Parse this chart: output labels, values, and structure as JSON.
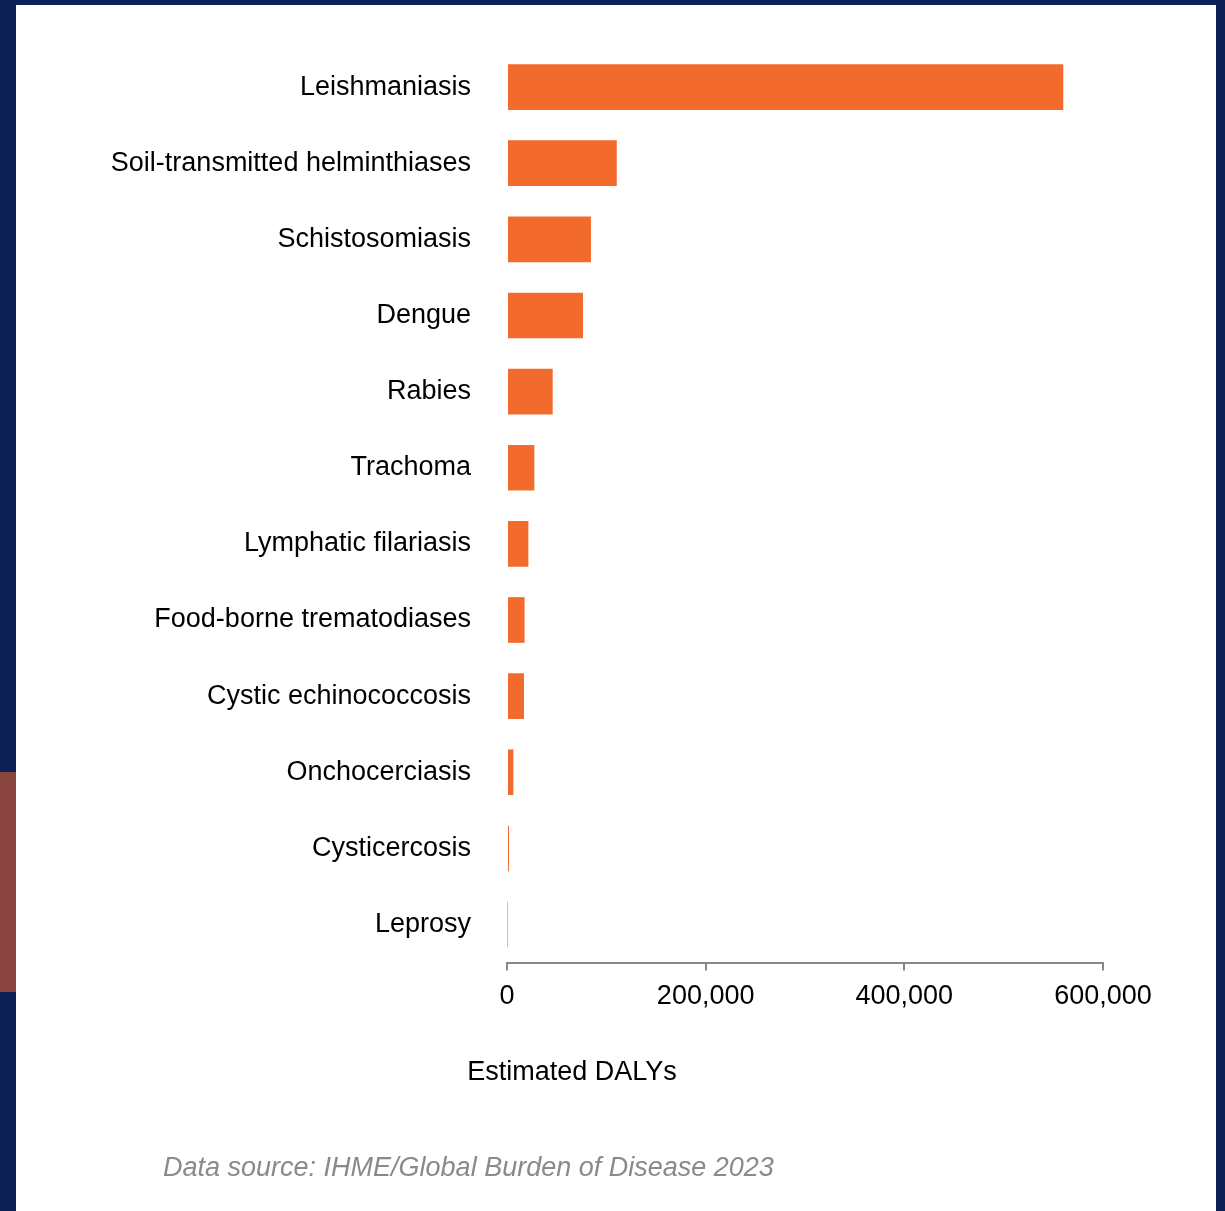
{
  "chart_data": {
    "type": "bar",
    "orientation": "horizontal",
    "categories": [
      "Leishmaniasis",
      "Soil-transmitted helminthiases",
      "Schistosomiasis",
      "Dengue",
      "Rabies",
      "Trachoma",
      "Lymphatic filariasis",
      "Food-borne trematodiases",
      "Cystic echinococcosis",
      "Onchocerciasis",
      "Cysticercosis",
      "Leprosy"
    ],
    "values": [
      560000,
      110500,
      84500,
      76500,
      46000,
      27500,
      21500,
      17700,
      17100,
      6400,
      2000,
      500
    ],
    "color": "#f26a2c",
    "xlim": [
      0,
      600000
    ],
    "xticks": [
      {
        "value": 0,
        "label": "0"
      },
      {
        "value": 200000,
        "label": "200,000"
      },
      {
        "value": 400000,
        "label": "400,000"
      },
      {
        "value": 600000,
        "label": "600,000"
      }
    ],
    "xlabel": "Estimated DALYs",
    "annotations": [
      "Data source: IHME/Global Burden of Disease 2023"
    ],
    "grid": false,
    "legend": false
  }
}
